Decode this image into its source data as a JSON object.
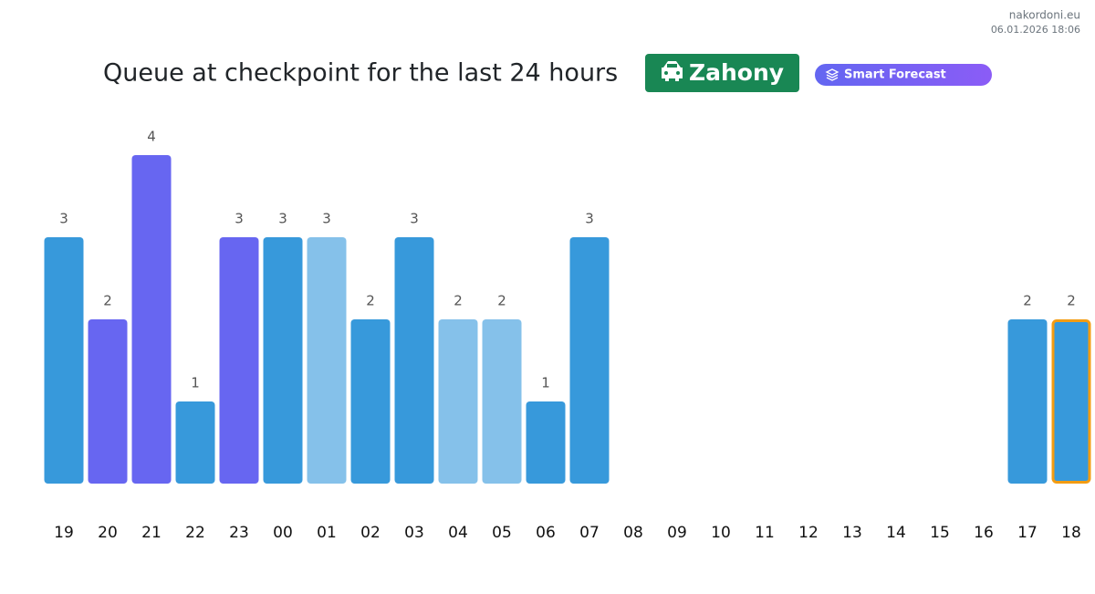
{
  "chart_data": {
    "type": "bar",
    "site": "nakordoni.eu",
    "timestamp": "06.01.2026 18:06",
    "title": "Queue at checkpoint for the last 24 hours",
    "checkpoint": "Zahony",
    "badge": "Smart Forecast",
    "categories": [
      "19",
      "20",
      "21",
      "22",
      "23",
      "00",
      "01",
      "02",
      "03",
      "04",
      "05",
      "06",
      "07",
      "08",
      "09",
      "10",
      "11",
      "12",
      "13",
      "14",
      "15",
      "16",
      "17",
      "18"
    ],
    "values": [
      3,
      2,
      4,
      1,
      3,
      3,
      3,
      2,
      3,
      2,
      2,
      1,
      3,
      null,
      null,
      null,
      null,
      null,
      null,
      null,
      null,
      null,
      2,
      2
    ],
    "colors": [
      "#3799db",
      "#6766f1",
      "#6766f1",
      "#3799db",
      "#6766f1",
      "#3799db",
      "#85c1ea",
      "#3799db",
      "#3799db",
      "#85c1ea",
      "#85c1ea",
      "#3799db",
      "#3799db",
      null,
      null,
      null,
      null,
      null,
      null,
      null,
      null,
      null,
      "#3799db",
      "#3799db"
    ],
    "outline_colors": [
      null,
      null,
      null,
      null,
      null,
      null,
      null,
      null,
      null,
      null,
      null,
      null,
      null,
      null,
      null,
      null,
      null,
      null,
      null,
      null,
      null,
      null,
      null,
      "#f39c12"
    ]
  }
}
